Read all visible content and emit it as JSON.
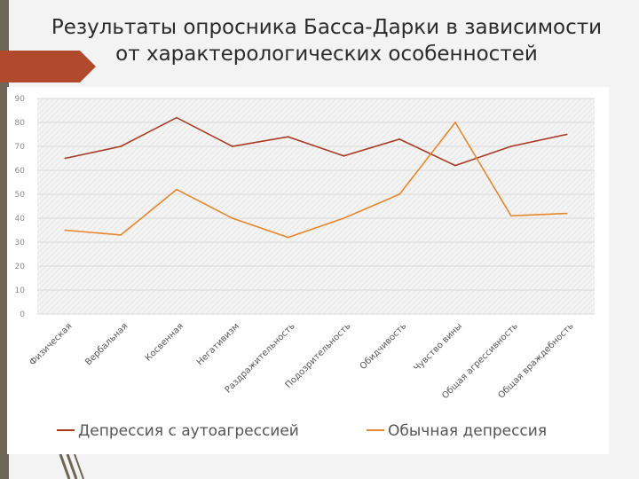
{
  "slide": {
    "title_line1": "Результаты опросника Басса-Дарки в зависимости",
    "title_line2": "от характерологических особенностей"
  },
  "chart_data": {
    "type": "line",
    "title": "",
    "xlabel": "",
    "ylabel": "",
    "categories": [
      "Физическая",
      "Вербальная",
      "Косвенная",
      "Негативизм",
      "Раздражительность",
      "Подозрительность",
      "Обидчивость",
      "Чувство вины",
      "Общая агрессивность",
      "Общая враждебность"
    ],
    "series": [
      {
        "name": "Депрессия с аутоагрессией",
        "color": "#a83a22",
        "values": [
          65,
          70,
          82,
          70,
          74,
          66,
          73,
          62,
          70,
          75
        ]
      },
      {
        "name": "Обычная депрессия",
        "color": "#e8862c",
        "values": [
          35,
          33,
          52,
          40,
          32,
          40,
          50,
          80,
          41,
          42
        ]
      }
    ],
    "ylim": [
      0,
      90
    ],
    "yticks": [
      0,
      10,
      20,
      30,
      40,
      50,
      60,
      70,
      80,
      90
    ],
    "grid": true,
    "legend": "bottom"
  }
}
